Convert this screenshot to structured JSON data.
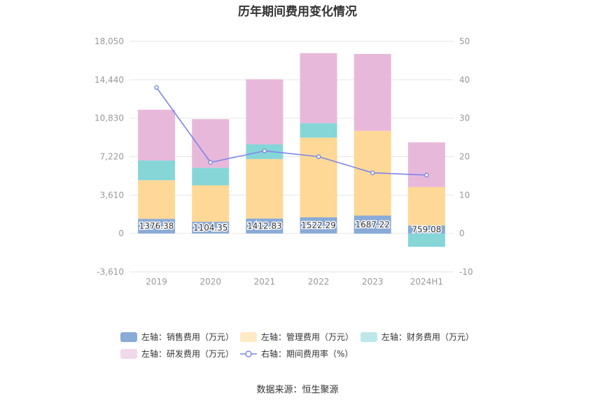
{
  "title": "历年期间费用变化情况",
  "source": "数据来源：恒生聚源",
  "chart_data": {
    "type": "bar",
    "stacked": true,
    "categories": [
      "2019",
      "2020",
      "2021",
      "2022",
      "2023",
      "2024H1"
    ],
    "left_axis": {
      "ylim": [
        -3610,
        18050
      ],
      "ticks": [
        "18,050",
        "14,440",
        "10,830",
        "7,220",
        "3,610",
        "0",
        "-3,610"
      ],
      "tick_values": [
        18050,
        14440,
        10830,
        7220,
        3610,
        0,
        -3610
      ]
    },
    "right_axis": {
      "ylim": [
        -10,
        50
      ],
      "ticks": [
        "50",
        "40",
        "30",
        "20",
        "10",
        "0",
        "-10"
      ],
      "tick_values": [
        50,
        40,
        30,
        20,
        10,
        0,
        -10
      ]
    },
    "series": [
      {
        "name": "左轴：销售费用（万元）",
        "color": "#8aaad8",
        "values": [
          1376.38,
          1104.35,
          1412.83,
          1522.29,
          1687.22,
          759.08
        ],
        "labels": [
          "1376.38",
          "1104.35",
          "1412.83",
          "1522.29",
          "1687.22",
          "759.08"
        ]
      },
      {
        "name": "左轴：管理费用（万元）",
        "color": "#fed896",
        "values": [
          3630,
          3420,
          5580,
          7480,
          7950,
          3610
        ]
      },
      {
        "name": "左轴：财务费用（万元）",
        "color": "#86d6d8",
        "values": [
          1850,
          1650,
          1380,
          1370,
          -10,
          -1250
        ]
      },
      {
        "name": "左轴：研发费用（万元）",
        "color": "#e8b8da",
        "values": [
          4770,
          4570,
          6110,
          6570,
          7230,
          4190
        ]
      }
    ],
    "line": {
      "name": "右轴：期间费用率（%）",
      "color": "#7b86e8",
      "values": [
        38.0,
        18.5,
        21.5,
        20.0,
        15.8,
        15.2
      ]
    },
    "grid": true
  }
}
